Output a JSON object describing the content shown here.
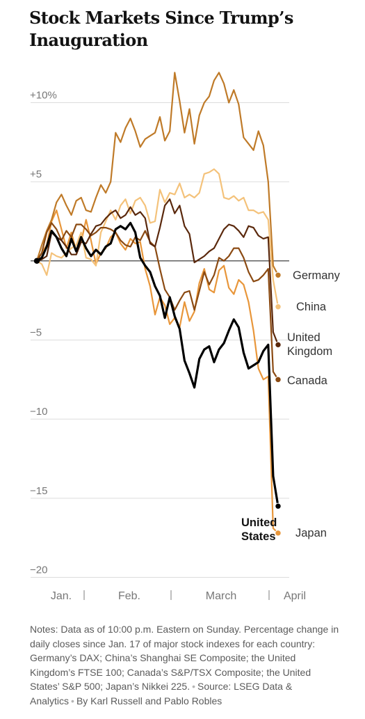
{
  "title": "Stock Markets Since Trump’s Inauguration",
  "chart_data": {
    "type": "line",
    "ylim": [
      -20,
      10
    ],
    "y_ticks": [
      {
        "value": 10,
        "label": "+10%"
      },
      {
        "value": 5,
        "label": "+5"
      },
      {
        "value": 0,
        "label": ""
      },
      {
        "value": -5,
        "label": "−5"
      },
      {
        "value": -10,
        "label": "−10"
      },
      {
        "value": -15,
        "label": "−15"
      },
      {
        "value": -20,
        "label": "−20"
      }
    ],
    "x_ticks": [
      "Jan.",
      "Feb.",
      "March",
      "April"
    ],
    "month_separators": 3,
    "series": [
      {
        "name": "Japan",
        "color": "#e8963a",
        "final": -17.2,
        "bold": false,
        "values": [
          0,
          0.5,
          1,
          2.5,
          3.2,
          2,
          0.8,
          1.8,
          0.6,
          1.2,
          2.6,
          1.3,
          -0.2,
          0.5,
          0.8,
          1.5,
          1.8,
          1.1,
          0.7,
          1.4,
          1.1,
          1.2,
          -0.5,
          -1.6,
          -3.4,
          -2.3,
          -2.8,
          -4,
          -3.6,
          -4.2,
          -2.6,
          -3.8,
          -3.2,
          -1.4,
          -0.5,
          -1.8,
          -2,
          -0.6,
          -0.3,
          -1.7,
          -2.1,
          -1.2,
          -1.5,
          -2.6,
          -4.4,
          -6.8,
          -7.5,
          -7.3,
          -16.9,
          -17.2
        ]
      },
      {
        "name": "China",
        "color": "#f4c27a",
        "final": -2.9,
        "bold": false,
        "values": [
          0,
          -0.2,
          -0.9,
          0.5,
          0.3,
          0.2,
          0.5,
          0.8,
          1,
          1.8,
          0.2,
          0.1,
          -0.3,
          1.8,
          2.5,
          3.2,
          2.6,
          3.5,
          3.9,
          3,
          3.8,
          4,
          3.5,
          2.4,
          2.5,
          4.5,
          3.7,
          4.3,
          4.2,
          4.9,
          4,
          4.2,
          4,
          4.3,
          5.5,
          5.6,
          5.8,
          5.5,
          4,
          3.9,
          4.1,
          3.8,
          4,
          3.2,
          3.2,
          3,
          3.1,
          2.6,
          -1.2,
          -2.9
        ]
      },
      {
        "name": "Germany",
        "color": "#bf7a28",
        "final": -0.9,
        "bold": false,
        "values": [
          0,
          1,
          1.9,
          2.6,
          3.7,
          4.2,
          3.5,
          2.9,
          3.8,
          4,
          3.2,
          3.1,
          4,
          4.8,
          4.3,
          5,
          8.1,
          7.5,
          8.4,
          9,
          8.2,
          7.2,
          7.7,
          7.9,
          8.1,
          9.1,
          7.6,
          8.2,
          11.9,
          10.1,
          8.1,
          9.6,
          7.4,
          9.2,
          10,
          10.4,
          11.4,
          11.9,
          11.2,
          10,
          10.8,
          9.9,
          7.8,
          7.4,
          7,
          8.2,
          7.3,
          5,
          -0.3,
          -0.9
        ]
      },
      {
        "name": "Canada",
        "color": "#8b4a12",
        "final": -7.5,
        "bold": false,
        "values": [
          0,
          0.5,
          1.8,
          2.4,
          2,
          1.3,
          1.9,
          1.5,
          2.3,
          2.3,
          2,
          1.6,
          1.8,
          2.1,
          2.1,
          2,
          1.8,
          1.3,
          1,
          0.9,
          1.5,
          1.3,
          1.9,
          1.2,
          0.9,
          -0.5,
          -1.8,
          -2.3,
          -3.1,
          -2.5,
          -2,
          -1.9,
          -3.1,
          -1.9,
          -0.7,
          -1.5,
          -0.9,
          0.2,
          0,
          0.3,
          0.8,
          0.8,
          0.2,
          -0.7,
          -1.3,
          -1.2,
          -0.9,
          -0.5,
          -7,
          -7.5
        ]
      },
      {
        "name": "United Kingdom",
        "color": "#5a280c",
        "final": -5.3,
        "bold": false,
        "values": [
          0,
          0.1,
          0.3,
          1.8,
          1.5,
          1.3,
          0.9,
          0.4,
          0.4,
          1.2,
          1.1,
          1.7,
          2.2,
          2.3,
          2.7,
          3,
          3.2,
          2.7,
          2.9,
          3.4,
          2.9,
          3.1,
          2.7,
          1.1,
          0.9,
          2.1,
          3.5,
          3.9,
          3,
          3.5,
          2.2,
          1.7,
          -0.1,
          0.1,
          0.3,
          0.6,
          0.8,
          1.4,
          2,
          2.3,
          2.2,
          1.9,
          1.5,
          2.2,
          2.1,
          1.6,
          1.4,
          1.5,
          -4.5,
          -5.3
        ]
      },
      {
        "name": "United States",
        "color": "#000000",
        "final": -15.5,
        "bold": true,
        "values": [
          0,
          0.2,
          0.9,
          1.9,
          1.5,
          0.8,
          0.3,
          1.4,
          0.6,
          1.5,
          0.8,
          0.3,
          0.7,
          0.4,
          0.9,
          1.1,
          2,
          2.2,
          2,
          2.4,
          1.8,
          0.2,
          -0.3,
          -0.7,
          -1.6,
          -2.2,
          -3.6,
          -2.3,
          -3.5,
          -4.3,
          -6.3,
          -7.1,
          -8,
          -6.2,
          -5.6,
          -5.4,
          -6.4,
          -5.6,
          -5.2,
          -4.4,
          -3.7,
          -4.2,
          -5.8,
          -6.8,
          -6.6,
          -6.4,
          -5.7,
          -5.3,
          -13.6,
          -15.5
        ]
      }
    ]
  },
  "labels": {
    "germany": "Germany",
    "china": "China",
    "uk_line1": "United",
    "uk_line2": "Kingdom",
    "canada": "Canada",
    "us_line1": "United",
    "us_line2": "States",
    "japan": "Japan"
  },
  "notes": {
    "text": "Notes: Data as of 10:00 p.m. Eastern on Sunday. Percentage change in daily closes since Jan. 17 of major stock indexes for each country: Germany’s DAX; China’s Shanghai SE Composite; the United Kingdom’s FTSE 100; Canada’s S&P/TSX Composite; the United States’ S&P 500; Japan’s Nikkei 225.",
    "source": "Source: LSEG Data & Analytics",
    "byline": "By Karl Russell and Pablo Robles"
  }
}
